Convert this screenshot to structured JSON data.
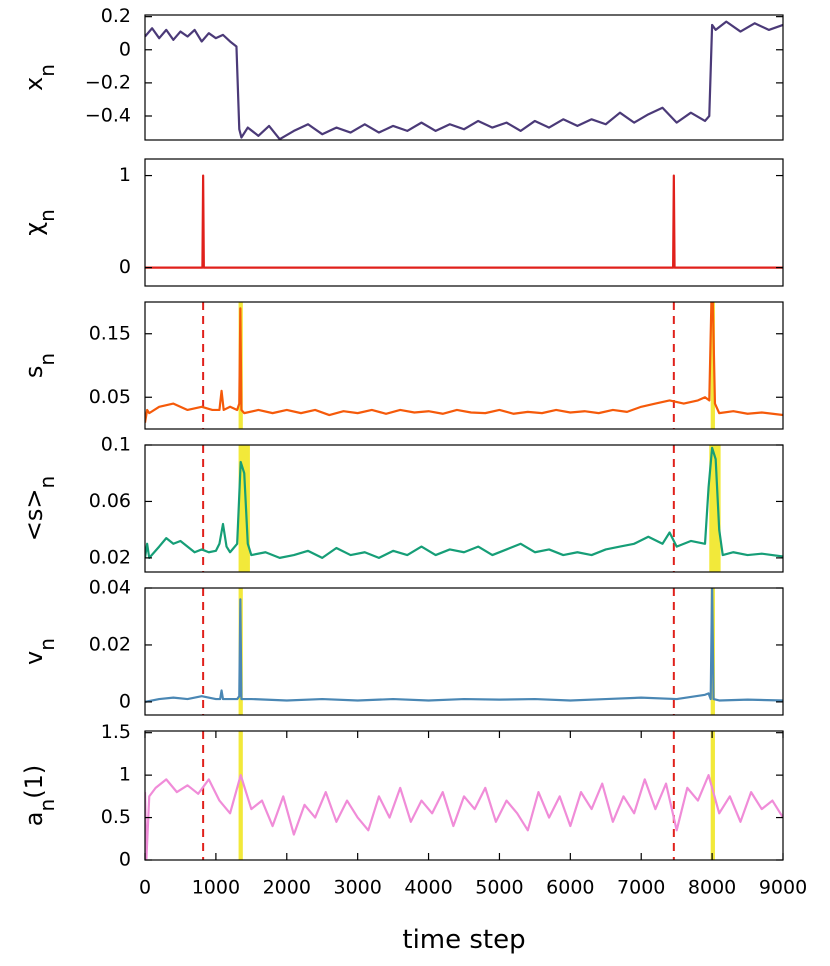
{
  "chart_data": [
    {
      "type": "line",
      "ylabel": [
        "x",
        "n"
      ],
      "color": "#4b3a78",
      "xlim": [
        0,
        9000
      ],
      "ylim": [
        -0.545,
        0.21
      ],
      "yticks": [
        0.2,
        0,
        {
          "value": -0.2,
          "label": "−0.2"
        },
        {
          "value": -0.4,
          "label": "−0.4"
        }
      ],
      "x": [
        0,
        100,
        200,
        300,
        400,
        500,
        600,
        700,
        800,
        900,
        1000,
        1100,
        1200,
        1290,
        1330,
        1360,
        1450,
        1600,
        1750,
        1900,
        2100,
        2300,
        2500,
        2700,
        2900,
        3100,
        3300,
        3500,
        3700,
        3900,
        4100,
        4300,
        4500,
        4700,
        4900,
        5100,
        5300,
        5500,
        5700,
        5900,
        6100,
        6300,
        6500,
        6700,
        6900,
        7100,
        7300,
        7500,
        7700,
        7900,
        7960,
        8000,
        8050,
        8200,
        8400,
        8600,
        8800,
        9000
      ],
      "values": [
        0.08,
        0.13,
        0.07,
        0.12,
        0.06,
        0.11,
        0.08,
        0.12,
        0.05,
        0.1,
        0.07,
        0.09,
        0.05,
        0.02,
        -0.48,
        -0.53,
        -0.47,
        -0.52,
        -0.46,
        -0.54,
        -0.49,
        -0.45,
        -0.51,
        -0.47,
        -0.5,
        -0.45,
        -0.5,
        -0.46,
        -0.49,
        -0.44,
        -0.49,
        -0.45,
        -0.48,
        -0.43,
        -0.47,
        -0.44,
        -0.49,
        -0.43,
        -0.47,
        -0.42,
        -0.46,
        -0.42,
        -0.45,
        -0.38,
        -0.44,
        -0.39,
        -0.35,
        -0.44,
        -0.38,
        -0.43,
        -0.4,
        0.15,
        0.12,
        0.17,
        0.11,
        0.16,
        0.12,
        0.15
      ]
    },
    {
      "type": "line",
      "ylabel": [
        "χ",
        "n"
      ],
      "color": "#e0201b",
      "xlim": [
        0,
        9000
      ],
      "ylim": [
        -0.2,
        1.18
      ],
      "yticks": [
        0,
        1
      ],
      "x": [
        0,
        810,
        820,
        830,
        7450,
        7460,
        7470,
        9000
      ],
      "values": [
        0,
        0,
        1,
        0,
        0,
        1,
        0,
        0
      ]
    },
    {
      "type": "line",
      "ylabel": [
        "s",
        "n"
      ],
      "color": "#f55a0a",
      "xlim": [
        0,
        9000
      ],
      "ylim": [
        0,
        0.2
      ],
      "yticks": [
        0.15,
        0.05
      ],
      "vlines": [
        820,
        7460
      ],
      "vline_color": "#e0201b",
      "spans": [
        [
          1320,
          1380
        ],
        [
          7980,
          8040
        ]
      ],
      "span_color": "#f2e93a",
      "x": [
        0,
        30,
        60,
        200,
        400,
        600,
        800,
        950,
        1050,
        1080,
        1110,
        1200,
        1300,
        1330,
        1345,
        1360,
        1400,
        1600,
        1800,
        2000,
        2200,
        2400,
        2600,
        2800,
        3000,
        3200,
        3400,
        3600,
        3800,
        4000,
        4200,
        4400,
        4600,
        4800,
        5000,
        5200,
        5400,
        5600,
        5800,
        6000,
        6200,
        6400,
        6600,
        6800,
        7000,
        7200,
        7400,
        7600,
        7800,
        7900,
        7960,
        7990,
        8010,
        8040,
        8100,
        8300,
        8500,
        8700,
        9000
      ],
      "values": [
        0.01,
        0.03,
        0.025,
        0.035,
        0.04,
        0.03,
        0.035,
        0.03,
        0.03,
        0.06,
        0.03,
        0.035,
        0.03,
        0.04,
        0.19,
        0.03,
        0.025,
        0.03,
        0.025,
        0.03,
        0.025,
        0.03,
        0.022,
        0.028,
        0.025,
        0.03,
        0.024,
        0.03,
        0.026,
        0.028,
        0.024,
        0.03,
        0.026,
        0.025,
        0.03,
        0.024,
        0.027,
        0.025,
        0.03,
        0.026,
        0.028,
        0.025,
        0.03,
        0.027,
        0.035,
        0.04,
        0.045,
        0.04,
        0.045,
        0.05,
        0.045,
        0.2,
        0.2,
        0.04,
        0.025,
        0.028,
        0.024,
        0.026,
        0.022
      ]
    },
    {
      "type": "line",
      "ylabel": [
        "<s>",
        "n"
      ],
      "color": "#169e77",
      "xlim": [
        0,
        9000
      ],
      "ylim": [
        0.01,
        0.1
      ],
      "yticks": [
        0.1,
        0.06,
        0.02
      ],
      "vlines": [
        820,
        7460
      ],
      "vline_color": "#e0201b",
      "spans": [
        [
          1320,
          1480
        ],
        [
          7960,
          8120
        ]
      ],
      "span_color": "#f2e93a",
      "x": [
        0,
        30,
        60,
        200,
        300,
        400,
        500,
        600,
        700,
        800,
        900,
        1000,
        1050,
        1100,
        1150,
        1200,
        1300,
        1350,
        1400,
        1450,
        1500,
        1700,
        1900,
        2100,
        2300,
        2500,
        2700,
        2900,
        3100,
        3300,
        3500,
        3700,
        3900,
        4100,
        4300,
        4500,
        4700,
        4900,
        5100,
        5300,
        5500,
        5700,
        5900,
        6100,
        6300,
        6500,
        6700,
        6900,
        7100,
        7300,
        7400,
        7500,
        7700,
        7900,
        7950,
        8000,
        8050,
        8100,
        8150,
        8300,
        8500,
        8700,
        9000
      ],
      "values": [
        0.02,
        0.03,
        0.02,
        0.028,
        0.034,
        0.03,
        0.032,
        0.028,
        0.024,
        0.026,
        0.024,
        0.025,
        0.03,
        0.044,
        0.028,
        0.024,
        0.03,
        0.088,
        0.08,
        0.03,
        0.022,
        0.024,
        0.02,
        0.022,
        0.025,
        0.02,
        0.027,
        0.022,
        0.024,
        0.02,
        0.025,
        0.022,
        0.028,
        0.022,
        0.026,
        0.024,
        0.028,
        0.022,
        0.026,
        0.03,
        0.024,
        0.026,
        0.022,
        0.024,
        0.022,
        0.026,
        0.028,
        0.03,
        0.035,
        0.03,
        0.038,
        0.028,
        0.032,
        0.03,
        0.07,
        0.098,
        0.09,
        0.04,
        0.022,
        0.024,
        0.022,
        0.023,
        0.021
      ]
    },
    {
      "type": "line",
      "ylabel": [
        "v",
        "n"
      ],
      "color": "#4a87b4",
      "xlim": [
        0,
        9000
      ],
      "ylim": [
        -0.0046,
        0.04
      ],
      "yticks": [
        0.04,
        0.02,
        0
      ],
      "vlines": [
        820,
        7460
      ],
      "vline_color": "#e0201b",
      "spans": [
        [
          1320,
          1380
        ],
        [
          7980,
          8040
        ]
      ],
      "span_color": "#f2e93a",
      "x": [
        0,
        200,
        400,
        600,
        800,
        1000,
        1060,
        1080,
        1100,
        1300,
        1330,
        1345,
        1360,
        1500,
        2000,
        2500,
        3000,
        3500,
        4000,
        4500,
        5000,
        5500,
        6000,
        6500,
        7000,
        7500,
        7900,
        7950,
        7980,
        8000,
        8020,
        8100,
        8500,
        9000
      ],
      "values": [
        0,
        0.001,
        0.0015,
        0.001,
        0.002,
        0.001,
        0.001,
        0.004,
        0.001,
        0.001,
        0.002,
        0.036,
        0.001,
        0.001,
        0.0005,
        0.001,
        0.0005,
        0.001,
        0.0005,
        0.001,
        0.0008,
        0.001,
        0.0005,
        0.001,
        0.0015,
        0.001,
        0.0025,
        0.003,
        0.001,
        0.042,
        0.001,
        0.0005,
        0.0008,
        0.0005
      ]
    },
    {
      "type": "line",
      "ylabel": [
        "a",
        "n",
        "(1)"
      ],
      "color": "#f08cd8",
      "xlim": [
        0,
        9000
      ],
      "ylim": [
        0,
        1.52
      ],
      "yticks": [
        1.5,
        1,
        0.5,
        0
      ],
      "xticks": [
        0,
        1000,
        2000,
        3000,
        4000,
        5000,
        6000,
        7000,
        8000,
        9000
      ],
      "xlabel": "time step",
      "vlines": [
        820,
        7460
      ],
      "vline_color": "#e0201b",
      "spans": [
        [
          1320,
          1380
        ],
        [
          7980,
          8040
        ]
      ],
      "span_color": "#f2e93a",
      "x": [
        0,
        20,
        60,
        150,
        300,
        450,
        600,
        750,
        900,
        1050,
        1200,
        1350,
        1500,
        1650,
        1800,
        1950,
        2100,
        2250,
        2400,
        2550,
        2700,
        2850,
        3000,
        3150,
        3300,
        3450,
        3600,
        3750,
        3900,
        4050,
        4200,
        4350,
        4500,
        4650,
        4800,
        4950,
        5100,
        5250,
        5400,
        5550,
        5700,
        5850,
        6000,
        6150,
        6300,
        6450,
        6600,
        6750,
        6900,
        7050,
        7200,
        7350,
        7500,
        7650,
        7800,
        7950,
        8100,
        8250,
        8400,
        8550,
        8700,
        8850,
        9000
      ],
      "values": [
        0.8,
        0.02,
        0.75,
        0.85,
        0.95,
        0.8,
        0.88,
        0.78,
        0.95,
        0.7,
        0.55,
        1.0,
        0.6,
        0.7,
        0.4,
        0.75,
        0.3,
        0.65,
        0.5,
        0.8,
        0.45,
        0.7,
        0.5,
        0.35,
        0.75,
        0.5,
        0.85,
        0.45,
        0.7,
        0.55,
        0.8,
        0.4,
        0.75,
        0.6,
        0.85,
        0.45,
        0.7,
        0.55,
        0.35,
        0.8,
        0.5,
        0.75,
        0.4,
        0.8,
        0.6,
        0.9,
        0.45,
        0.75,
        0.55,
        0.95,
        0.6,
        0.9,
        0.35,
        0.85,
        0.7,
        1.0,
        0.55,
        0.75,
        0.45,
        0.8,
        0.6,
        0.7,
        0.5
      ]
    }
  ]
}
